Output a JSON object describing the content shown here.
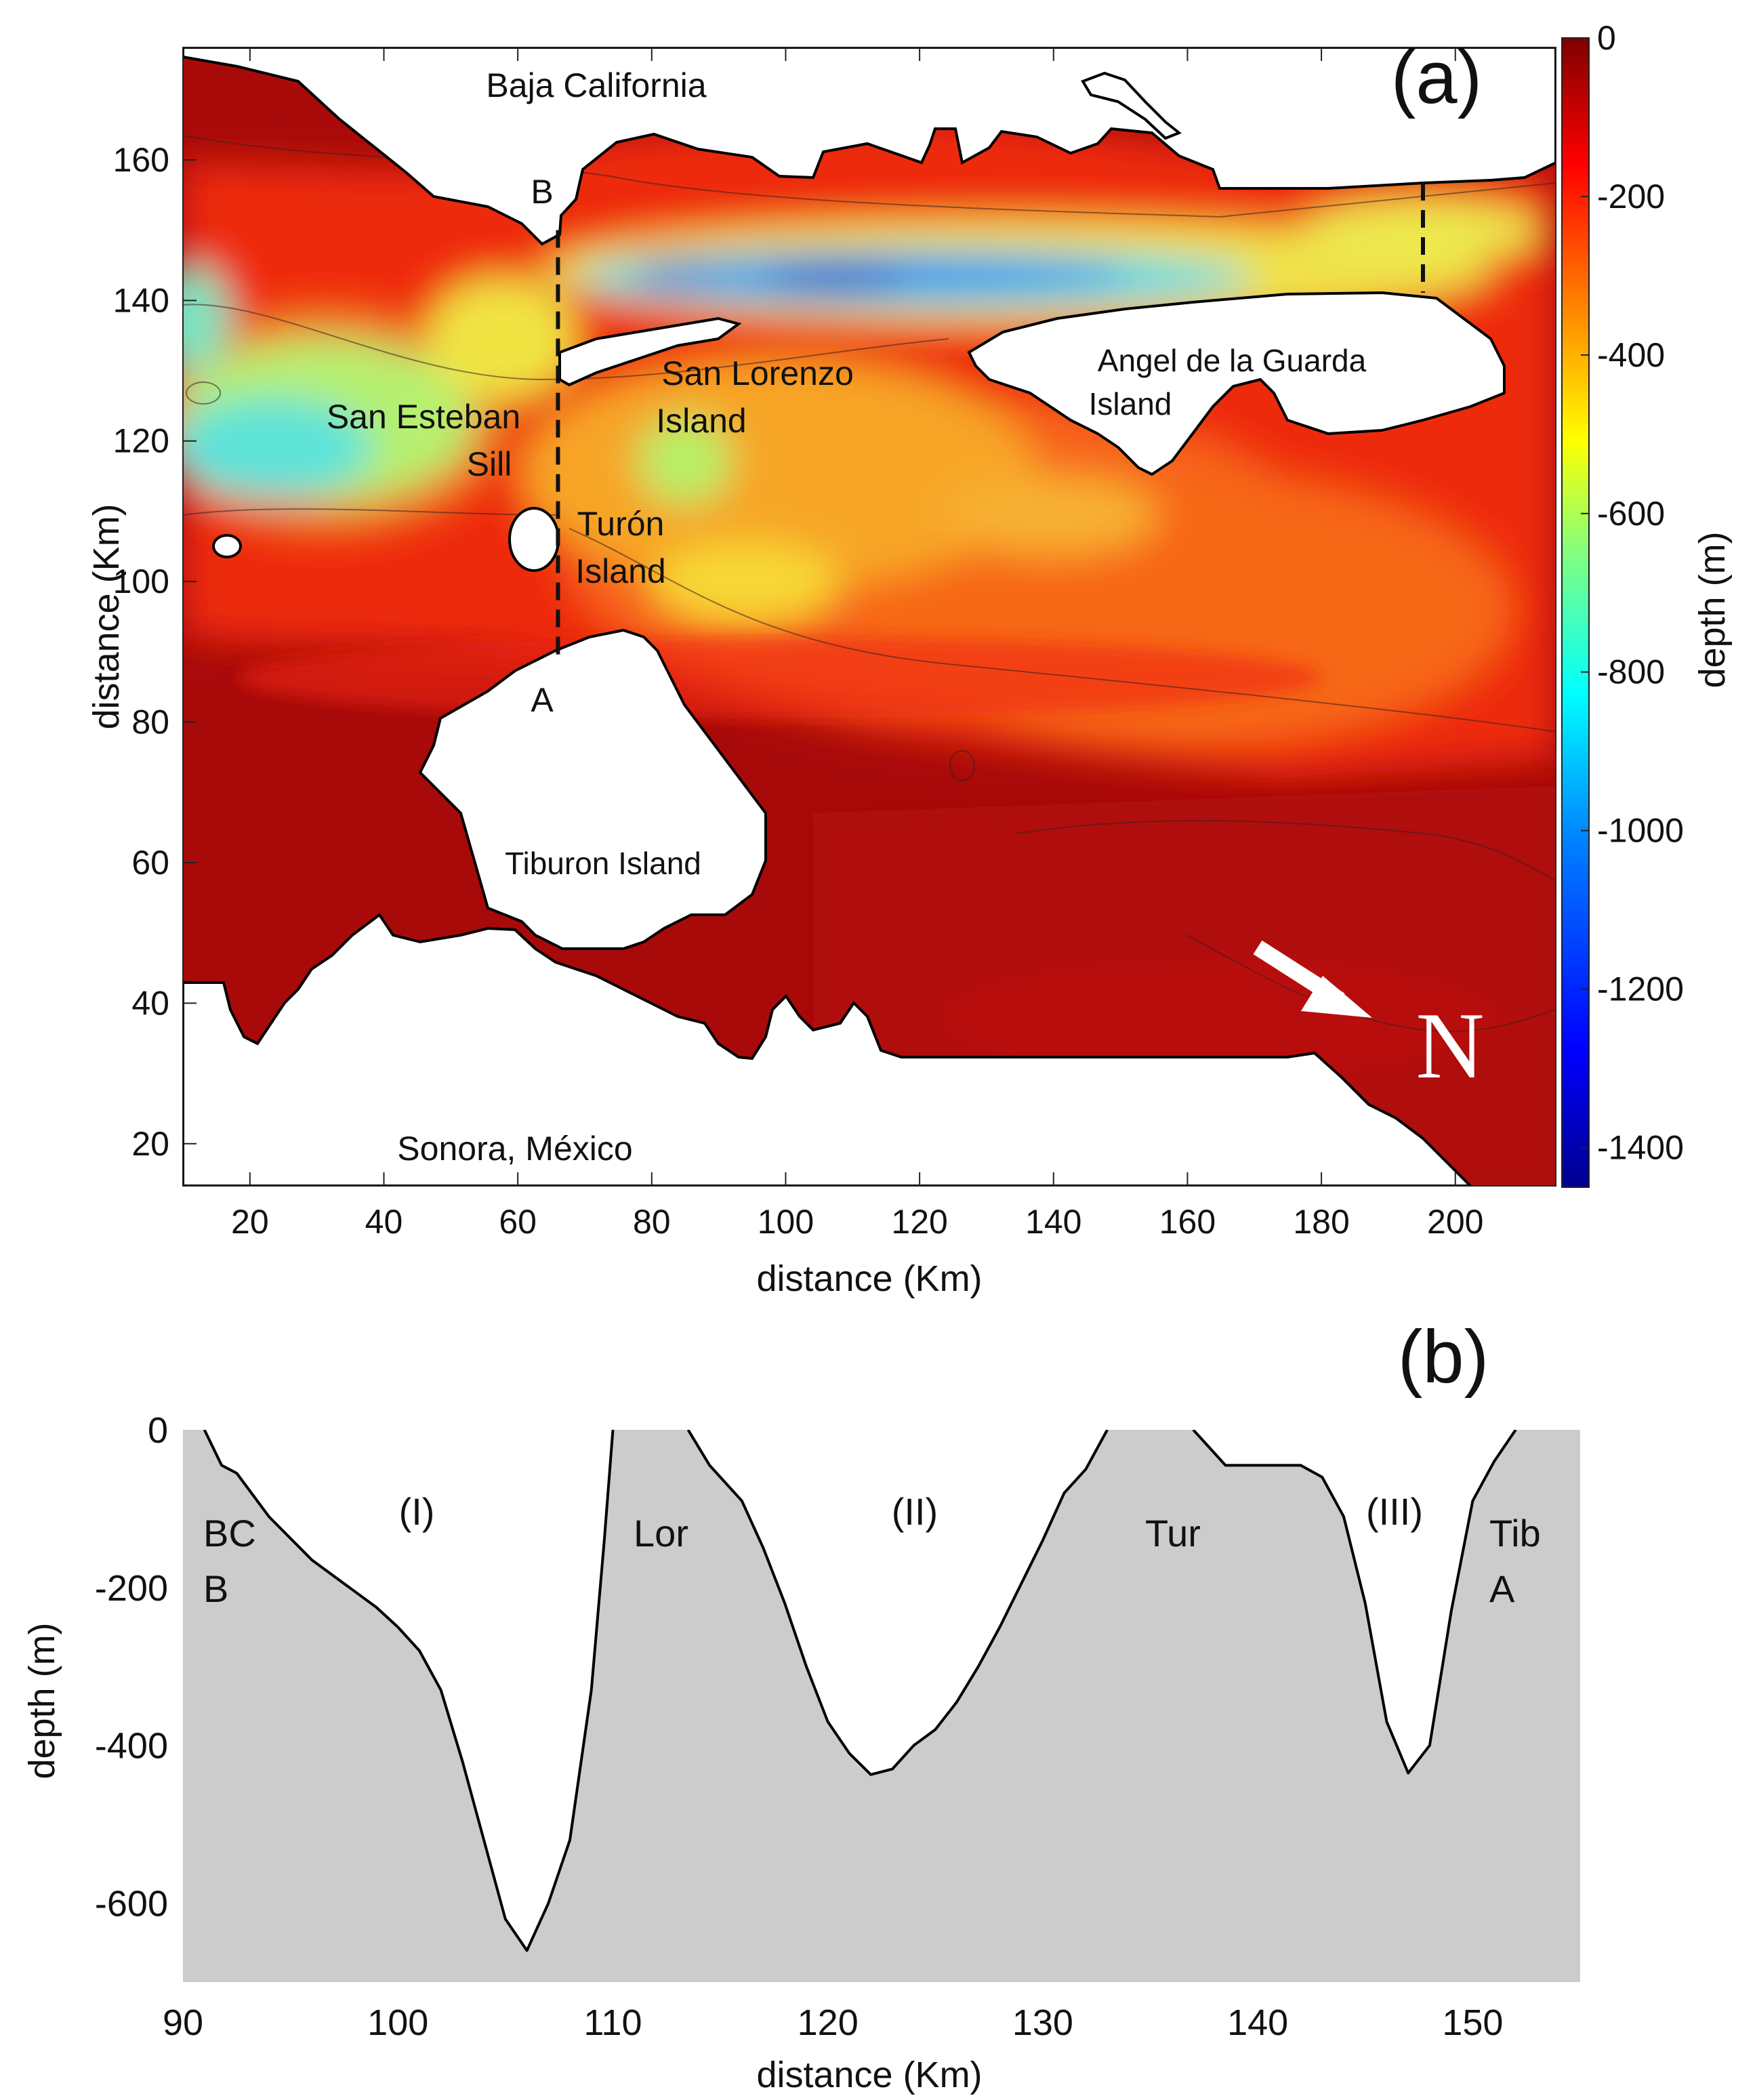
{
  "chart_data": [
    {
      "panel": "(a)",
      "type": "heatmap",
      "xlabel": "distance (Km)",
      "ylabel": "distance (Km)",
      "xlim": [
        10,
        215
      ],
      "ylim": [
        14,
        176
      ],
      "xticks": [
        20,
        40,
        60,
        80,
        100,
        120,
        140,
        160,
        180,
        200
      ],
      "yticks": [
        20,
        40,
        60,
        80,
        100,
        120,
        140,
        160
      ],
      "colorbar": {
        "label": "depth (m)",
        "range": [
          -1450,
          0
        ],
        "ticks": [
          0,
          -200,
          -400,
          -600,
          -800,
          -1000,
          -1200,
          -1400
        ],
        "colors": [
          "#00008f",
          "#0000ff",
          "#0080ff",
          "#00ffff",
          "#80ff80",
          "#ffff00",
          "#ff8000",
          "#ff0000",
          "#800000"
        ]
      },
      "labels": {
        "baja": "Baja California",
        "sonora": "Sonora, México",
        "b_end": "B",
        "a_end": "A",
        "san_esteban_1": "San Esteban",
        "san_esteban_2": "Sill",
        "san_lorenzo_1": "San Lorenzo",
        "san_lorenzo_2": "Island",
        "angel_1": "Angel de la Guarda",
        "angel_2": "Island",
        "turon_1": "Turón",
        "turon_2": "Island",
        "tiburon": "Tiburon Island",
        "north": "N"
      },
      "section_line": {
        "x": 66,
        "y_from": 89,
        "y_to": 150
      }
    },
    {
      "panel": "(b)",
      "type": "area",
      "xlabel": "distance (Km)",
      "ylabel": "depth (m)",
      "xlim": [
        90,
        155
      ],
      "ylim": [
        -700,
        0
      ],
      "xticks": [
        90,
        100,
        110,
        120,
        130,
        140,
        150
      ],
      "yticks": [
        0,
        -200,
        -400,
        -600
      ],
      "labels": {
        "bc_1": "BC",
        "bc_2": "B",
        "lor": "Lor",
        "tur": "Tur",
        "tib_1": "Tib",
        "tib_2": "A",
        "ch1": "(I)",
        "ch2": "(II)",
        "ch3": "(III)"
      },
      "channels": [
        {
          "name": "(I)",
          "x": [
            91,
            91.8,
            92.5,
            94,
            96,
            98,
            99,
            100,
            101,
            102,
            103,
            104,
            105,
            106,
            107,
            108,
            109,
            109.6,
            110
          ],
          "y": [
            0,
            -45,
            -55,
            -110,
            -165,
            -205,
            -225,
            -250,
            -280,
            -330,
            -420,
            -520,
            -620,
            -660,
            -600,
            -520,
            -330,
            -140,
            0
          ]
        },
        {
          "name": "(II)",
          "x": [
            113.5,
            114.5,
            116,
            117,
            118,
            119,
            120,
            121,
            122,
            123,
            124,
            125,
            126,
            127,
            128,
            129,
            130,
            131,
            132,
            133
          ],
          "y": [
            0,
            -45,
            -90,
            -150,
            -220,
            -300,
            -370,
            -410,
            -437,
            -430,
            -400,
            -380,
            -345,
            -300,
            -250,
            -195,
            -140,
            -80,
            -50,
            0
          ]
        },
        {
          "name": "(III)",
          "x": [
            137,
            138.5,
            142,
            143,
            144,
            145,
            146,
            147,
            148,
            149,
            150,
            151,
            152
          ],
          "y": [
            0,
            -45,
            -45,
            -60,
            -110,
            -220,
            -370,
            -435,
            -400,
            -230,
            -90,
            -40,
            0
          ]
        }
      ]
    }
  ]
}
